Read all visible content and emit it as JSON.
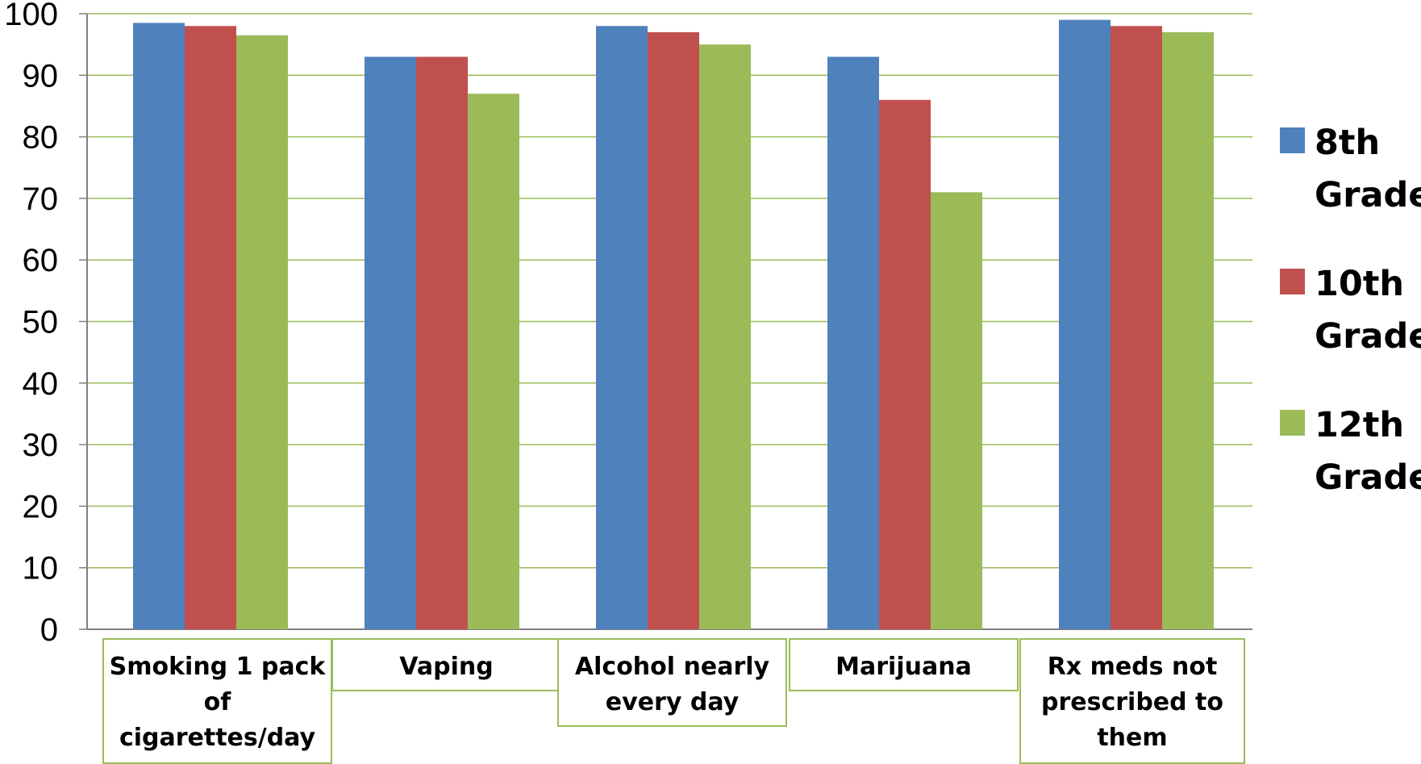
{
  "chart_data": {
    "type": "bar",
    "categories": [
      [
        "Smoking 1 pack",
        "of",
        "cigarettes/day"
      ],
      [
        "Vaping"
      ],
      [
        "Alcohol nearly",
        "every day"
      ],
      [
        "Marijuana"
      ],
      [
        "Rx meds not",
        "prescribed to",
        "them"
      ]
    ],
    "series": [
      {
        "name": [
          "8th",
          "Grade"
        ],
        "color": "#4f81bd",
        "values": [
          98.5,
          93,
          98,
          93,
          99
        ]
      },
      {
        "name": [
          "10th",
          "Grade"
        ],
        "color": "#c0504d",
        "values": [
          98,
          93,
          97,
          86,
          98
        ]
      },
      {
        "name": [
          "12th",
          "Grade"
        ],
        "color": "#9bbb59",
        "values": [
          96.5,
          87,
          95,
          71,
          97
        ]
      }
    ],
    "yticks": [
      "0",
      "10",
      "20",
      "30",
      "40",
      "50",
      "60",
      "70",
      "80",
      "90",
      "100"
    ],
    "ylim": [
      0,
      100
    ],
    "grid": true,
    "grid_color": "#9bbb59",
    "legend_position": "right",
    "title": "",
    "xlabel": "",
    "ylabel": ""
  }
}
